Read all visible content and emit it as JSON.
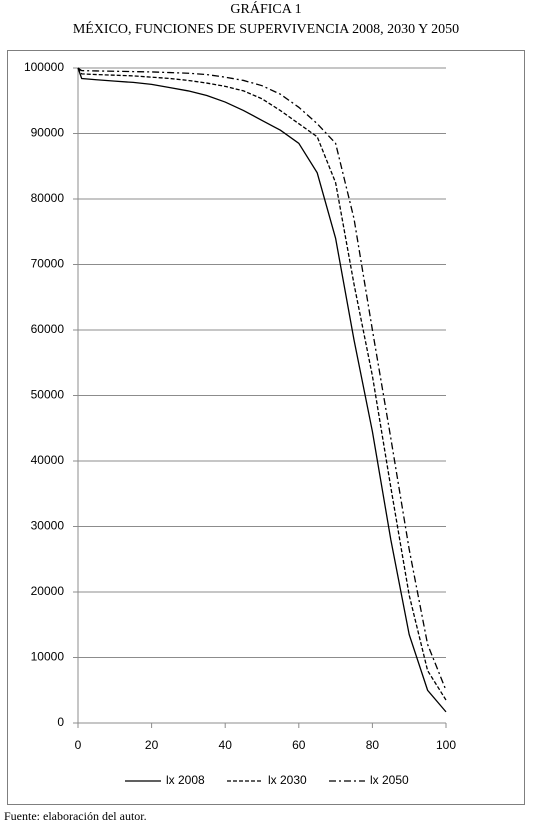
{
  "chart_data": {
    "type": "line",
    "title": "GRÁFICA 1",
    "subtitle": "MÉXICO, FUNCIONES DE SUPERVIVENCIA 2008, 2030 Y 2050",
    "source": "Fuente: elaboración del autor.",
    "x": [
      0,
      1,
      5,
      10,
      15,
      20,
      25,
      30,
      35,
      40,
      45,
      50,
      55,
      60,
      65,
      70,
      75,
      80,
      85,
      90,
      95,
      100
    ],
    "series": [
      {
        "name": "lx 2008",
        "color": "#000000",
        "dash": "solid",
        "values": [
          100000,
          98400,
          98200,
          98000,
          97800,
          97500,
          97000,
          96500,
          95800,
          94800,
          93500,
          92000,
          90500,
          88500,
          84000,
          74000,
          58500,
          44500,
          28000,
          13500,
          5000,
          1700
        ]
      },
      {
        "name": "lx 2030",
        "color": "#000000",
        "dash": "dashed",
        "values": [
          100000,
          99100,
          99000,
          98900,
          98800,
          98600,
          98400,
          98100,
          97700,
          97200,
          96500,
          95300,
          93500,
          91500,
          89500,
          82500,
          67000,
          53000,
          36000,
          19500,
          8000,
          3500
        ]
      },
      {
        "name": "lx 2050",
        "color": "#000000",
        "dash": "dashdot",
        "values": [
          100000,
          99600,
          99550,
          99500,
          99450,
          99400,
          99300,
          99200,
          99000,
          98600,
          98100,
          97300,
          96000,
          94000,
          91500,
          88500,
          77000,
          60000,
          43500,
          26500,
          12000,
          5000
        ]
      }
    ],
    "xlim": [
      0,
      100
    ],
    "xticks": [
      0,
      20,
      40,
      60,
      80,
      100
    ],
    "ylim": [
      0,
      100000
    ],
    "yticks": [
      0,
      10000,
      20000,
      30000,
      40000,
      50000,
      60000,
      70000,
      80000,
      90000,
      100000
    ],
    "grid": true,
    "legend": "bottom"
  }
}
